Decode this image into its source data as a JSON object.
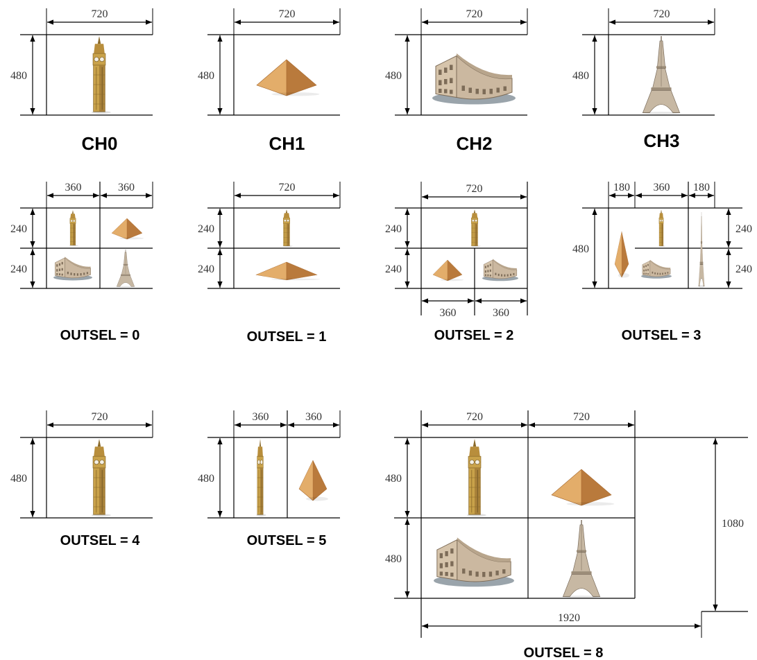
{
  "colors": {
    "line": "#000000",
    "tower_main": "#c9a24a",
    "tower_dark": "#8a6a2a",
    "tower_light": "#e3c77a",
    "pyramid_main": "#d79a55",
    "pyramid_dark": "#a86a30",
    "pyramid_light": "#f0c088",
    "colosseum_main": "#cbb8a0",
    "colosseum_dark": "#7d6c58",
    "colosseum_base": "#9aa4ab",
    "eiffel_main": "#c7b8a3",
    "eiffel_dark": "#7a6c5c"
  },
  "icons": {
    "big_ben": "big-ben-icon",
    "pyramid": "pyramid-icon",
    "colosseum": "colosseum-icon",
    "eiffel": "eiffel-tower-icon"
  },
  "panels": [
    {
      "caption": "CH0",
      "widths": [
        "720"
      ],
      "heights_left": [
        "480"
      ]
    },
    {
      "caption": "CH1",
      "widths": [
        "720"
      ],
      "heights_left": [
        "480"
      ]
    },
    {
      "caption": "CH2",
      "widths": [
        "720"
      ],
      "heights_left": [
        "480"
      ]
    },
    {
      "caption": "CH3",
      "widths": [
        "720"
      ],
      "heights_left": [
        "480"
      ]
    },
    {
      "caption": "OUTSEL = 0",
      "widths": [
        "360",
        "360"
      ],
      "heights_left": [
        "240",
        "240"
      ]
    },
    {
      "caption": "OUTSEL = 1",
      "widths": [
        "720"
      ],
      "heights_left": [
        "240",
        "240"
      ]
    },
    {
      "caption": "OUTSEL = 2",
      "widths": [
        "720"
      ],
      "heights_left": [
        "240",
        "240"
      ],
      "widths_bottom": [
        "360",
        "360"
      ]
    },
    {
      "caption": "OUTSEL = 3",
      "widths": [
        "180",
        "360",
        "180"
      ],
      "heights_left": [
        "480"
      ],
      "heights_right": [
        "240",
        "240"
      ]
    },
    {
      "caption": "OUTSEL = 4",
      "widths": [
        "720"
      ],
      "heights_left": [
        "480"
      ]
    },
    {
      "caption": "OUTSEL = 5",
      "widths": [
        "360",
        "360"
      ],
      "heights_left": [
        "480"
      ]
    },
    {
      "caption": "OUTSEL = 8",
      "widths": [
        "720",
        "720"
      ],
      "heights_left": [
        "480",
        "480"
      ],
      "height_total": "1080",
      "width_total": "1920"
    }
  ]
}
